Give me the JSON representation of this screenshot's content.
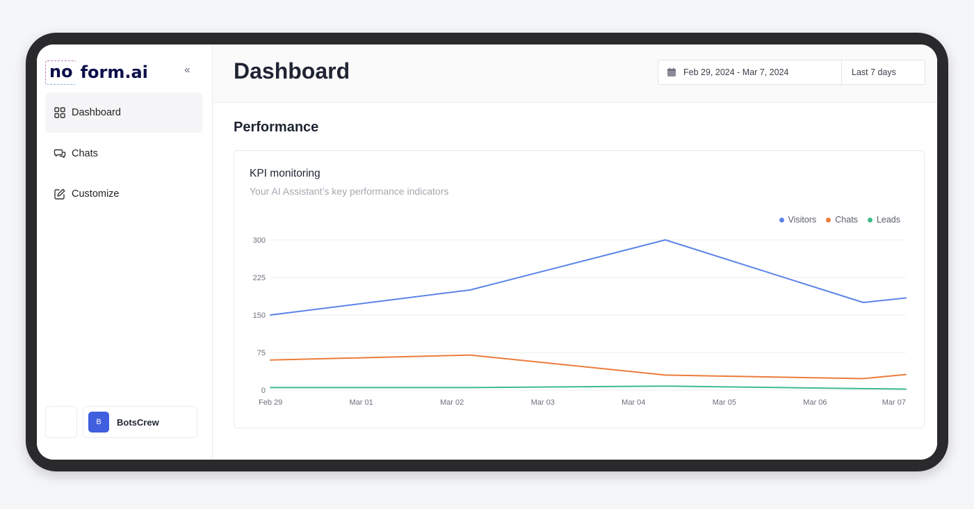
{
  "logo": {
    "part1": "no",
    "part2": "form.ai"
  },
  "sidebar": {
    "collapse_label": "‹‹",
    "items": [
      {
        "label": "Dashboard",
        "icon": "grid-icon",
        "active": true
      },
      {
        "label": "Chats",
        "icon": "chat-icon",
        "active": false
      },
      {
        "label": "Customize",
        "icon": "edit-icon",
        "active": false
      }
    ]
  },
  "account": {
    "initial": "B",
    "name": "BotsCrew",
    "avatar_color": "#3f5fde"
  },
  "header": {
    "title": "Dashboard",
    "date_range": "Feb 29, 2024 - Mar 7, 2024",
    "period": "Last 7 days"
  },
  "section": {
    "title": "Performance"
  },
  "card": {
    "title": "KPI monitoring",
    "subtitle": "Your AI Assistant’s key performance indicators"
  },
  "chart_data": {
    "type": "line",
    "x": [
      "Feb 29",
      "Mar 01",
      "Mar 02",
      "Mar 03",
      "Mar 04",
      "Mar 05",
      "Mar 06",
      "Mar 07"
    ],
    "ylim": [
      0,
      300
    ],
    "yticks": [
      0,
      75,
      150,
      225,
      300
    ],
    "grid": true,
    "legend": "top-right",
    "series": [
      {
        "name": "Visitors",
        "color": "#5b84e9",
        "points": [
          [
            0,
            150
          ],
          [
            2.2,
            200
          ],
          [
            4.35,
            300
          ],
          [
            6.53,
            175
          ],
          [
            7,
            184
          ]
        ]
      },
      {
        "name": "Chats",
        "color": "#ec7b3a",
        "points": [
          [
            0,
            60
          ],
          [
            2.2,
            70
          ],
          [
            4.35,
            30
          ],
          [
            6.53,
            23
          ],
          [
            7,
            31
          ]
        ]
      },
      {
        "name": "Leads",
        "color": "#3dbb8a",
        "points": [
          [
            0,
            5
          ],
          [
            2.2,
            5
          ],
          [
            4.35,
            8
          ],
          [
            6.53,
            3
          ],
          [
            7,
            2
          ]
        ]
      }
    ]
  }
}
